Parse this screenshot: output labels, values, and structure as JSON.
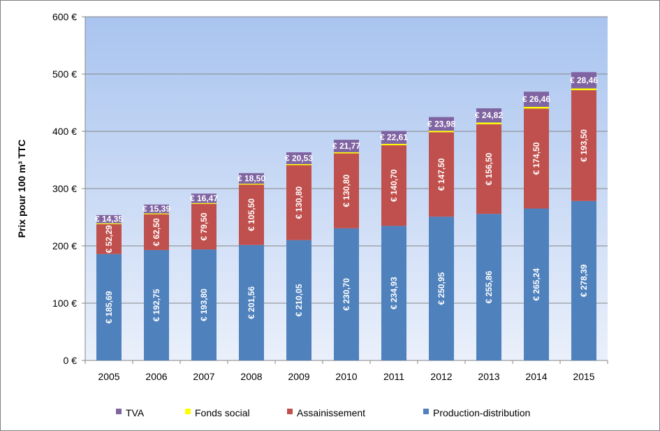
{
  "chart_data": {
    "type": "bar",
    "stacked": true,
    "ylabel": "Prix pour 100 m³ TTC",
    "ylim": [
      0,
      600
    ],
    "y_ticks": [
      "0 €",
      "100 €",
      "200 €",
      "300 €",
      "400 €",
      "500 €",
      "600 €"
    ],
    "y_tick_values": [
      0,
      100,
      200,
      300,
      400,
      500,
      600
    ],
    "categories": [
      "2005",
      "2006",
      "2007",
      "2008",
      "2009",
      "2010",
      "2011",
      "2012",
      "2013",
      "2014",
      "2015"
    ],
    "series": [
      {
        "name": "Production-distribution",
        "color": "#4f81bd",
        "values": [
          185.69,
          192.75,
          193.8,
          201.56,
          210.05,
          230.7,
          234.93,
          250.95,
          255.86,
          265.24,
          278.39
        ],
        "labels": [
          "€ 185,69",
          "€ 192,75",
          "€ 193,80",
          "€ 201,56",
          "€ 210,05",
          "€ 230,70",
          "€ 234,93",
          "€ 250,95",
          "€ 255,86",
          "€ 265,24",
          "€ 278,39"
        ]
      },
      {
        "name": "Assainissement",
        "color": "#c0504d",
        "values": [
          52.29,
          62.5,
          79.5,
          105.5,
          130.8,
          130.8,
          140.7,
          147.5,
          156.5,
          174.5,
          193.5
        ],
        "labels": [
          "€ 52,29",
          "€ 62,50",
          "€ 79,50",
          "€ 105,50",
          "€ 130,80",
          "€ 130,80",
          "€ 140,70",
          "€ 147,50",
          "€ 156,50",
          "€ 174,50",
          "€ 193,50"
        ]
      },
      {
        "name": "Fonds social",
        "color": "#ffff00",
        "values": [
          1.5,
          1.5,
          1.5,
          1.5,
          2,
          2,
          2.5,
          2.5,
          3,
          3,
          3
        ],
        "labels": []
      },
      {
        "name": "TVA",
        "color": "#8064a2",
        "values": [
          14.35,
          15.39,
          16.47,
          18.5,
          20.53,
          21.77,
          22.61,
          23.98,
          24.82,
          26.46,
          28.46
        ],
        "labels": [
          "€ 14,35",
          "€ 15,39",
          "€ 16,47",
          "€ 18,50",
          "€ 20,53",
          "€ 21,77",
          "€ 22,61",
          "€ 23,98",
          "€ 24,82",
          "€ 26,46",
          "€ 28,46"
        ]
      }
    ],
    "legend": {
      "position": "bottom",
      "order": [
        "TVA",
        "Fonds social",
        "Assainissement",
        "Production-distribution"
      ]
    },
    "plot_background": [
      "#a9c4ef",
      "#eaf0fb"
    ],
    "grid": true
  }
}
